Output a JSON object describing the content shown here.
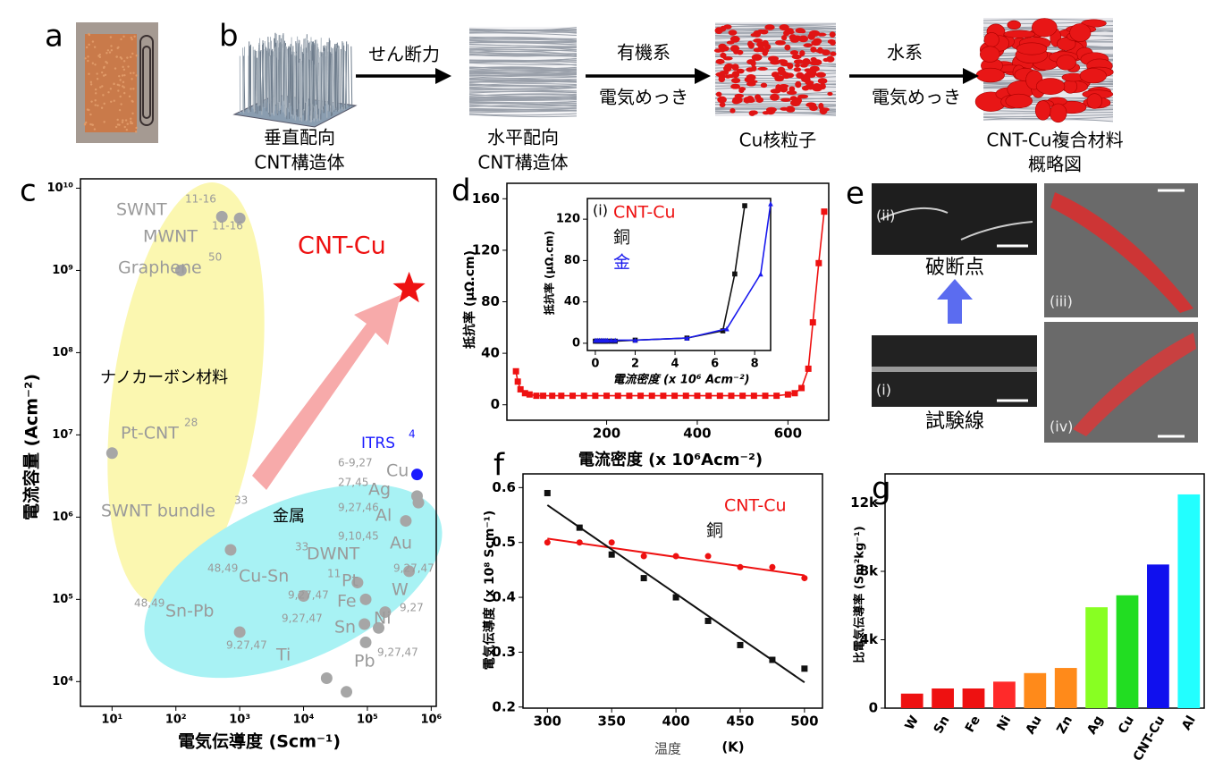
{
  "figure": {
    "panel_labels": [
      "a",
      "b",
      "e"
    ],
    "process": {
      "steps": [
        [
          "垂直配向",
          "CNT構造体"
        ],
        [
          "水平配向",
          "CNT構造体"
        ],
        [
          "Cu核粒子"
        ],
        [
          "CNT-Cu複合材料",
          "概略図"
        ]
      ],
      "arrows": [
        [
          "せん断力"
        ],
        [
          "有機系",
          "電気めっき"
        ],
        [
          "水系",
          "電気めっき"
        ]
      ]
    },
    "micrographs": {
      "labels": [
        "(ii)",
        "(i)",
        "(iii)",
        "(iv)"
      ],
      "captions": [
        "破断点",
        "試験線"
      ]
    }
  },
  "chart_data": [
    {
      "type": "scatter",
      "panel_label": "c",
      "xlabel": "電気伝導度 (Scm⁻¹)",
      "ylabel": "電流容量 (Acm⁻²)",
      "log_x": true,
      "log_y": true,
      "xlim": [
        3.2,
        1200000
      ],
      "ylim": [
        5000,
        13000000000
      ],
      "xticks": [
        {
          "value": 10,
          "label": "10¹"
        },
        {
          "value": 100,
          "label": "10²"
        },
        {
          "value": 1000,
          "label": "10³"
        },
        {
          "value": 10000,
          "label": "10⁴"
        },
        {
          "value": 100000,
          "label": "10⁵"
        },
        {
          "value": 1000000,
          "label": "10⁶"
        }
      ],
      "yticks": [
        {
          "value": 10000,
          "label": "10⁴"
        },
        {
          "value": 100000,
          "label": "10⁵"
        },
        {
          "value": 1000000,
          "label": "10⁶"
        },
        {
          "value": 10000000,
          "label": "10⁷"
        },
        {
          "value": 100000000,
          "label": "10⁸"
        },
        {
          "value": 1000000000,
          "label": "10⁹"
        },
        {
          "value": 10000000000,
          "label": "10¹⁰"
        }
      ],
      "series": [
        {
          "name": "ナノカーボン材料",
          "color": "#a6a6a6",
          "marker": "circle",
          "labels": [
            "SWNT",
            "MWNT",
            "Graphene",
            "Pt-CNT",
            "SWNT bundle"
          ],
          "refs": [
            "11-16",
            "11-16",
            "50",
            "28",
            "33"
          ],
          "x": [
            1000,
            525,
            120,
            10,
            720
          ],
          "values": [
            4300000000,
            4500000000,
            1000000000,
            6000000,
            400000
          ]
        },
        {
          "name": "金属",
          "color": "#a6a6a6",
          "marker": "circle",
          "labels": [
            "Cu",
            "Ag",
            "Al",
            "Au",
            "DWNT",
            "Cu-Sn",
            "Pt",
            "W",
            "Fe",
            "Sn",
            "Ni",
            "Sn-Pb",
            "Ti",
            "Pb"
          ],
          "refs": [
            "6-9,27",
            "27,45",
            "9,27,46",
            "9,10,45",
            "33",
            "48,49",
            "11",
            "9,27,47",
            "9,27,47",
            "9,27,47",
            "9,27",
            "48,49",
            "9.27,47",
            "9,27,47"
          ],
          "x": [
            600000,
            630000,
            400000,
            450000,
            70000,
            10000,
            94000,
            190000,
            90000,
            150000,
            94000,
            1000,
            23000,
            47000
          ],
          "values": [
            1800000,
            1500000,
            900000,
            220000,
            160000,
            110000,
            100000,
            70000,
            50000,
            45000,
            30000,
            40000,
            11000,
            7500
          ]
        },
        {
          "name": "ITRS",
          "color": "#1a1aff",
          "marker": "circle",
          "refs": [
            "4"
          ],
          "x": [
            600000
          ],
          "values": [
            3300000
          ]
        },
        {
          "name": "CNT-Cu",
          "color": "#ee1111",
          "marker": "star",
          "x": [
            450000
          ],
          "values": [
            600000000
          ]
        }
      ]
    },
    {
      "type": "line",
      "panel_label": "d",
      "xlabel": "電流密度 (x 10⁶Acm⁻²)",
      "ylabel": "抵抗率 (μΩ.cm)",
      "xlim": [
        -20,
        690
      ],
      "ylim": [
        -12,
        172
      ],
      "xticks": [
        200,
        400,
        600
      ],
      "yticks": [
        0,
        40,
        80,
        120,
        160
      ],
      "series": [
        {
          "name": "CNT-Cu",
          "color": "#ee1111",
          "marker": "square",
          "x": [
            0,
            4,
            10,
            20,
            30,
            45,
            60,
            80,
            100,
            125,
            150,
            175,
            200,
            225,
            250,
            275,
            300,
            325,
            350,
            375,
            400,
            425,
            450,
            475,
            500,
            525,
            550,
            575,
            600,
            615,
            630,
            645,
            655,
            668,
            680
          ],
          "values": [
            26,
            18,
            12,
            9,
            8,
            7,
            7,
            7,
            7,
            7,
            7,
            7,
            7,
            7,
            7,
            7,
            7,
            7,
            7,
            7,
            7,
            7,
            7,
            7,
            7,
            7,
            7,
            7,
            8,
            9,
            13,
            28,
            64,
            110,
            150
          ]
        }
      ]
    },
    {
      "type": "line",
      "panel_label": "(i)",
      "xlabel": "電流密度 (x 10⁶ Acm⁻²)",
      "ylabel": "抵抗率 (μΩ.cm)",
      "xlim": [
        -0.4,
        8.8
      ],
      "ylim": [
        -7,
        140
      ],
      "xticks": [
        0,
        2,
        4,
        6,
        8
      ],
      "yticks": [
        0,
        40,
        80,
        120
      ],
      "series": [
        {
          "name": "銅",
          "color": "#111111",
          "marker": "square",
          "x": [
            0,
            0.1,
            0.2,
            0.3,
            0.4,
            0.5,
            0.6,
            0.8,
            1,
            2,
            4.6,
            6.4,
            7.0,
            7.5
          ],
          "values": [
            2,
            2,
            2,
            2,
            2,
            2,
            2,
            2,
            2,
            3,
            5,
            12,
            67,
            133
          ]
        },
        {
          "name": "金",
          "color": "#1a1aee",
          "marker": "triangle",
          "x": [
            0,
            0.1,
            0.2,
            0.3,
            0.4,
            0.5,
            0.6,
            0.8,
            1,
            2,
            4.6,
            6.6,
            8.3,
            8.8
          ],
          "values": [
            3,
            3,
            3,
            3,
            3,
            3,
            3,
            3,
            3,
            3,
            5,
            14,
            67,
            135
          ]
        }
      ]
    },
    {
      "type": "scatter",
      "panel_label": "f",
      "xlabel": "温度",
      "xunit": "(K)",
      "ylabel": "電気伝導度 (x 10⁸ Scm⁻¹)",
      "xlim": [
        281,
        514
      ],
      "ylim": [
        0.198,
        0.625
      ],
      "xticks": [
        300,
        350,
        400,
        450,
        500
      ],
      "yticks": [
        0.2,
        0.3,
        0.4,
        0.5,
        0.6
      ],
      "x": [
        300,
        325,
        350,
        375,
        400,
        425,
        450,
        475,
        500
      ],
      "series": [
        {
          "name": "CNT-Cu",
          "color": "#ee1111",
          "marker": "circle",
          "values": [
            0.5,
            0.5,
            0.5,
            0.475,
            0.475,
            0.475,
            0.455,
            0.455,
            0.435
          ],
          "fit_x": [
            300,
            500
          ],
          "fit": [
            0.507,
            0.44
          ]
        },
        {
          "name": "銅",
          "color": "#111111",
          "marker": "square",
          "values": [
            0.59,
            0.527,
            0.478,
            0.435,
            0.4,
            0.357,
            0.313,
            0.286,
            0.27
          ],
          "fit_x": [
            300,
            500
          ],
          "fit": [
            0.568,
            0.245
          ]
        }
      ]
    },
    {
      "type": "bar",
      "panel_label": "g",
      "ylabel": "比電気伝導率 (Sm²kg⁻¹)",
      "categories": [
        "W",
        "Sn",
        "Fe",
        "Ni",
        "Au",
        "Zn",
        "Ag",
        "Cu",
        "CNT-Cu",
        "Al"
      ],
      "values": [
        850,
        1150,
        1150,
        1550,
        2050,
        2350,
        5900,
        6600,
        8400,
        12500
      ],
      "colors": [
        "#ee1111",
        "#ee1111",
        "#ee1111",
        "#ff2a2a",
        "#ff8a1a",
        "#ff8a1a",
        "#88ff22",
        "#22dd22",
        "#1010ee",
        "#22ffff"
      ],
      "ylim": [
        0,
        13700
      ],
      "yticks": [
        0,
        {
          "value": 4000,
          "label": "4k"
        },
        {
          "value": 8000,
          "label": "8k"
        },
        {
          "value": 12000,
          "label": "12k"
        }
      ]
    }
  ]
}
